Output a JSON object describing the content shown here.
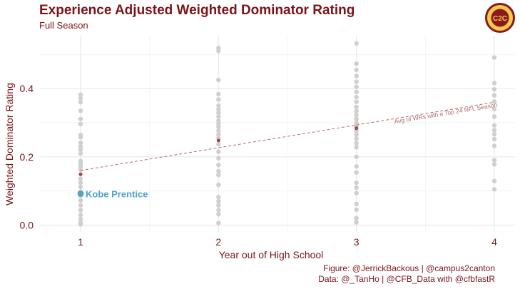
{
  "title": "Experience Adjusted Weighted Dominator Rating",
  "subtitle": "Full Season",
  "caption_figure": "Figure: @JerrickBackous | @campus2canton",
  "caption_data": "Data: @_TanHo | @CFB_Data with @cfbfastR",
  "logo_text": "C2C",
  "colors": {
    "title": "#7a1418",
    "points": "#cfcfcf",
    "average": "#9e4a4a",
    "highlight": "#4fa3cc",
    "trend": "#b56a6a",
    "logo_ring": "#8b1a1a",
    "logo_fill": "#f2c94c"
  },
  "chart_data": {
    "type": "scatter",
    "xlabel": "Year out of High School",
    "ylabel": "Weighted Dominator Rating",
    "xlim": [
      0.7,
      4.15
    ],
    "ylim": [
      -0.02,
      0.555
    ],
    "x_ticks": [
      1,
      2,
      3,
      4
    ],
    "y_ticks": [
      0.0,
      0.2,
      0.4
    ],
    "y_tick_labels": [
      "0.0",
      "0.2",
      "0.4"
    ],
    "grid": true,
    "series": [
      {
        "name": "WRs with a Top 24 NFL Season",
        "points": [
          {
            "x": 1,
            "y": 0.382
          },
          {
            "x": 1,
            "y": 0.371
          },
          {
            "x": 1,
            "y": 0.36
          },
          {
            "x": 1,
            "y": 0.335
          },
          {
            "x": 1,
            "y": 0.311
          },
          {
            "x": 1,
            "y": 0.296
          },
          {
            "x": 1,
            "y": 0.264
          },
          {
            "x": 1,
            "y": 0.257
          },
          {
            "x": 1,
            "y": 0.241
          },
          {
            "x": 1,
            "y": 0.23
          },
          {
            "x": 1,
            "y": 0.221
          },
          {
            "x": 1,
            "y": 0.21
          },
          {
            "x": 1,
            "y": 0.188
          },
          {
            "x": 1,
            "y": 0.179
          },
          {
            "x": 1,
            "y": 0.171
          },
          {
            "x": 1,
            "y": 0.162
          },
          {
            "x": 1,
            "y": 0.136
          },
          {
            "x": 1,
            "y": 0.124
          },
          {
            "x": 1,
            "y": 0.112
          },
          {
            "x": 1,
            "y": 0.098
          },
          {
            "x": 1,
            "y": 0.086
          },
          {
            "x": 1,
            "y": 0.072
          },
          {
            "x": 1,
            "y": 0.058
          },
          {
            "x": 1,
            "y": 0.044
          },
          {
            "x": 1,
            "y": 0.03
          },
          {
            "x": 1,
            "y": 0.018
          },
          {
            "x": 1,
            "y": 0.008
          },
          {
            "x": 1,
            "y": 0.002
          },
          {
            "x": 2,
            "y": 0.519
          },
          {
            "x": 2,
            "y": 0.51
          },
          {
            "x": 2,
            "y": 0.425
          },
          {
            "x": 2,
            "y": 0.384
          },
          {
            "x": 2,
            "y": 0.368
          },
          {
            "x": 2,
            "y": 0.35
          },
          {
            "x": 2,
            "y": 0.339
          },
          {
            "x": 2,
            "y": 0.329
          },
          {
            "x": 2,
            "y": 0.318
          },
          {
            "x": 2,
            "y": 0.306
          },
          {
            "x": 2,
            "y": 0.297
          },
          {
            "x": 2,
            "y": 0.288
          },
          {
            "x": 2,
            "y": 0.276
          },
          {
            "x": 2,
            "y": 0.265
          },
          {
            "x": 2,
            "y": 0.255
          },
          {
            "x": 2,
            "y": 0.237
          },
          {
            "x": 2,
            "y": 0.215
          },
          {
            "x": 2,
            "y": 0.196
          },
          {
            "x": 2,
            "y": 0.176
          },
          {
            "x": 2,
            "y": 0.158
          },
          {
            "x": 2,
            "y": 0.147
          },
          {
            "x": 2,
            "y": 0.118
          },
          {
            "x": 2,
            "y": 0.082
          },
          {
            "x": 2,
            "y": 0.07
          },
          {
            "x": 2,
            "y": 0.058
          },
          {
            "x": 2,
            "y": 0.044
          },
          {
            "x": 2,
            "y": 0.032
          },
          {
            "x": 2,
            "y": 0.006
          },
          {
            "x": 3,
            "y": 0.532
          },
          {
            "x": 3,
            "y": 0.473
          },
          {
            "x": 3,
            "y": 0.455
          },
          {
            "x": 3,
            "y": 0.437
          },
          {
            "x": 3,
            "y": 0.42
          },
          {
            "x": 3,
            "y": 0.405
          },
          {
            "x": 3,
            "y": 0.39
          },
          {
            "x": 3,
            "y": 0.375
          },
          {
            "x": 3,
            "y": 0.361
          },
          {
            "x": 3,
            "y": 0.346
          },
          {
            "x": 3,
            "y": 0.334
          },
          {
            "x": 3,
            "y": 0.322
          },
          {
            "x": 3,
            "y": 0.311
          },
          {
            "x": 3,
            "y": 0.3
          },
          {
            "x": 3,
            "y": 0.29
          },
          {
            "x": 3,
            "y": 0.276
          },
          {
            "x": 3,
            "y": 0.265
          },
          {
            "x": 3,
            "y": 0.253
          },
          {
            "x": 3,
            "y": 0.24
          },
          {
            "x": 3,
            "y": 0.228
          },
          {
            "x": 3,
            "y": 0.2
          },
          {
            "x": 3,
            "y": 0.172
          },
          {
            "x": 3,
            "y": 0.154
          },
          {
            "x": 3,
            "y": 0.124
          },
          {
            "x": 3,
            "y": 0.11
          },
          {
            "x": 3,
            "y": 0.094
          },
          {
            "x": 3,
            "y": 0.062
          },
          {
            "x": 3,
            "y": 0.045
          },
          {
            "x": 3,
            "y": 0.02
          },
          {
            "x": 3,
            "y": 0.008
          },
          {
            "x": 4,
            "y": 0.491
          },
          {
            "x": 4,
            "y": 0.416
          },
          {
            "x": 4,
            "y": 0.398
          },
          {
            "x": 4,
            "y": 0.38
          },
          {
            "x": 4,
            "y": 0.362
          },
          {
            "x": 4,
            "y": 0.34
          },
          {
            "x": 4,
            "y": 0.318
          },
          {
            "x": 4,
            "y": 0.292
          },
          {
            "x": 4,
            "y": 0.278
          },
          {
            "x": 4,
            "y": 0.266
          },
          {
            "x": 4,
            "y": 0.252
          },
          {
            "x": 4,
            "y": 0.232
          },
          {
            "x": 4,
            "y": 0.19
          },
          {
            "x": 4,
            "y": 0.178
          },
          {
            "x": 4,
            "y": 0.129
          },
          {
            "x": 4,
            "y": 0.105
          }
        ]
      }
    ],
    "averages": [
      {
        "x": 1,
        "y": 0.149
      },
      {
        "x": 2,
        "y": 0.248
      },
      {
        "x": 3,
        "y": 0.284
      }
    ],
    "trend_line": {
      "label": "Avg of WRs with a Top 24 NFL Season",
      "x": [
        1,
        4
      ],
      "y": [
        0.16,
        0.36
      ],
      "label_at_x": 3.65,
      "style": "dashed"
    },
    "highlight": {
      "name": "Kobe Prentice",
      "x": 1,
      "y": 0.092
    }
  }
}
